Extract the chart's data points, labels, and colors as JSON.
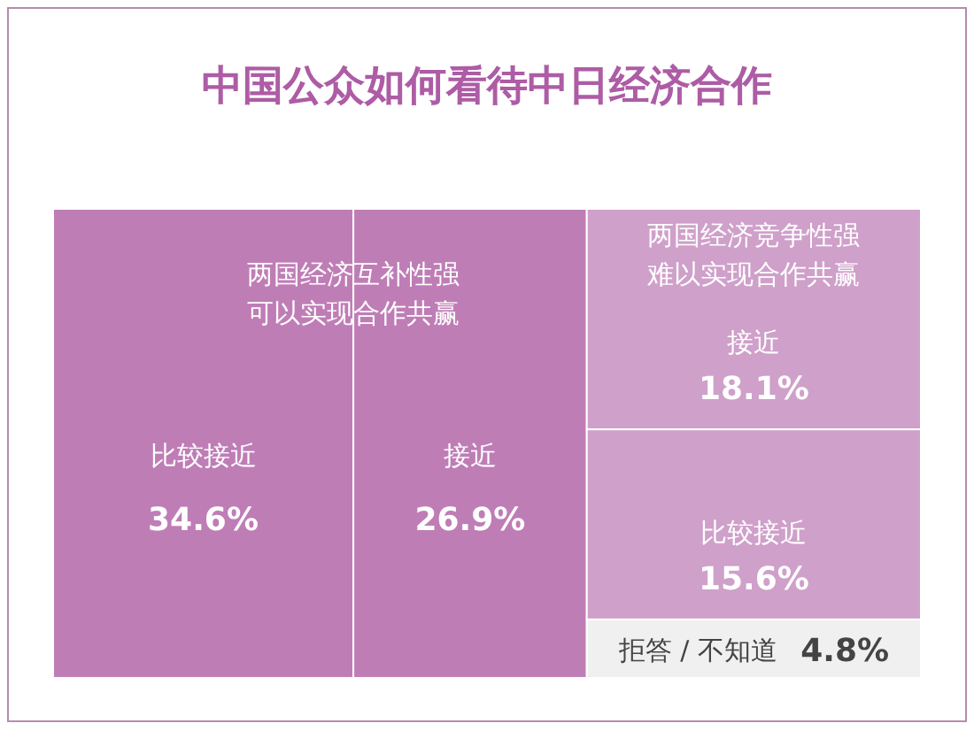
{
  "chart_data": {
    "type": "other",
    "title": "中国公众如何看待中日经济合作",
    "categories": [
      "比较接近",
      "接近",
      "接近",
      "比较接近",
      "拒答 / 不知道"
    ],
    "values": [
      34.6,
      26.9,
      18.1,
      15.6,
      4.8
    ],
    "value_labels": [
      "34.6%",
      "26.9%",
      "18.1%",
      "15.6%",
      "4.8%"
    ],
    "colors": [
      "#bf7db6",
      "#bf7db6",
      "#cfa0ca",
      "#cfa0ca",
      "#f0f0f0"
    ],
    "annotations": [
      "两国经济互补性强",
      "可以实现合作共赢",
      "两国经济竞争性强",
      "难以实现合作共赢"
    ]
  }
}
